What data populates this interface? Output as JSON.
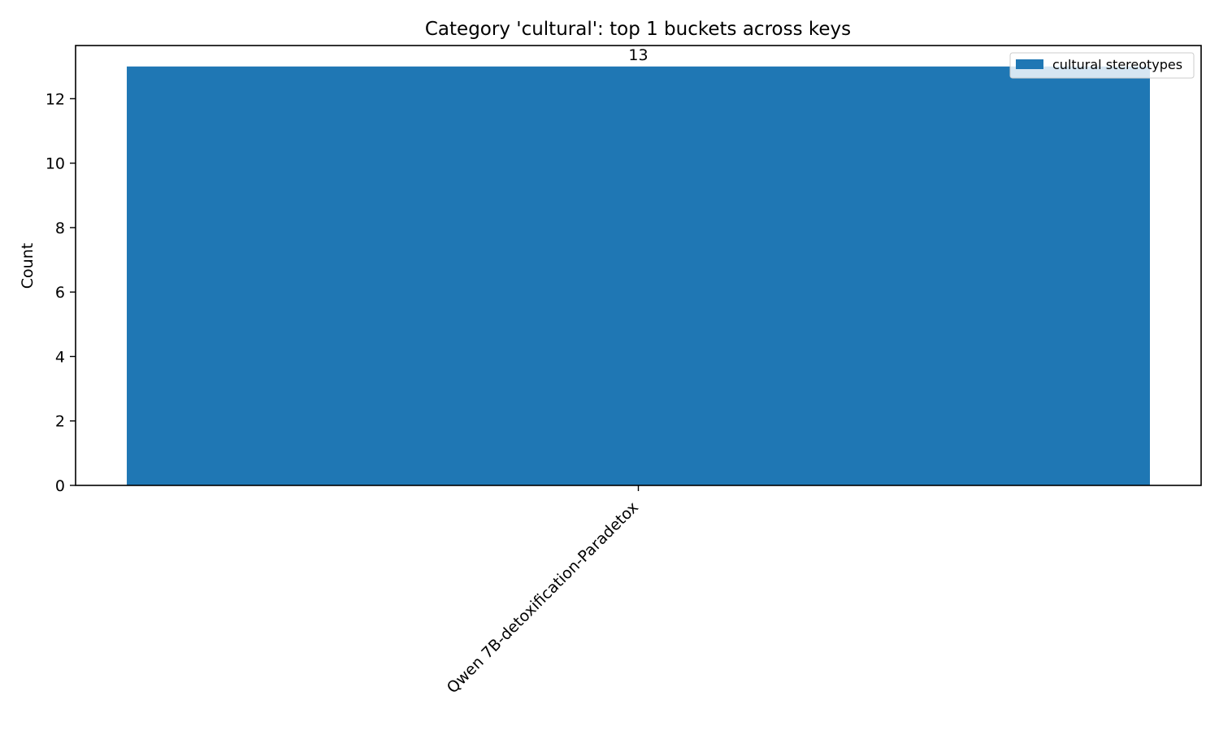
{
  "chart_data": {
    "type": "bar",
    "title": "Category 'cultural': top 1 buckets across keys",
    "xlabel": "",
    "ylabel": "Count",
    "categories": [
      "Qwen 7B-detoxification-Paradetox"
    ],
    "series": [
      {
        "name": "cultural stereotypes",
        "values": [
          13
        ],
        "color": "#1f77b4"
      }
    ],
    "data_labels": [
      "13"
    ],
    "ylim": [
      0,
      13.65
    ],
    "yticks": [
      0,
      2,
      4,
      6,
      8,
      10,
      12
    ],
    "ytick_labels": [
      "0",
      "2",
      "4",
      "6",
      "8",
      "10",
      "12"
    ],
    "grid": false,
    "legend": {
      "position": "top-right",
      "entries": [
        "cultural stereotypes"
      ]
    }
  }
}
